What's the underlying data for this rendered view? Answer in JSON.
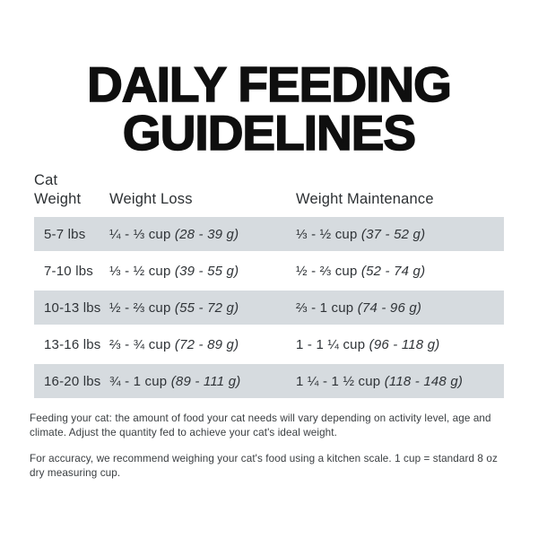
{
  "title": {
    "line1": "DAILY FEEDING",
    "line2": "GUIDELINES"
  },
  "table": {
    "headers": {
      "col1_line1": "Cat",
      "col1_line2": "Weight",
      "col2": "Weight Loss",
      "col3": "Weight Maintenance"
    },
    "rows": [
      {
        "weight": "5-7 lbs",
        "loss_cups": "¼ - ⅓ cup",
        "loss_grams": "(28 - 39 g)",
        "maint_cups": "⅓ - ½ cup",
        "maint_grams": "(37 - 52 g)"
      },
      {
        "weight": "7-10 lbs",
        "loss_cups": "⅓ - ½ cup",
        "loss_grams": "(39 - 55 g)",
        "maint_cups": "½ - ⅔ cup",
        "maint_grams": "(52 - 74 g)"
      },
      {
        "weight": "10-13 lbs",
        "loss_cups": "½ - ⅔ cup",
        "loss_grams": "(55 - 72 g)",
        "maint_cups": "⅔ - 1 cup",
        "maint_grams": "(74 - 96 g)"
      },
      {
        "weight": "13-16 lbs",
        "loss_cups": "⅔ - ¾ cup",
        "loss_grams": "(72 - 89 g)",
        "maint_cups": "1 - 1 ¼ cup",
        "maint_grams": "(96 - 118 g)"
      },
      {
        "weight": "16-20 lbs",
        "loss_cups": "¾ - 1 cup",
        "loss_grams": "(89 - 111 g)",
        "maint_cups": "1 ¼ - 1 ½ cup",
        "maint_grams": "(118 - 148 g)"
      }
    ],
    "row_shade_color": "#d6dbdf"
  },
  "footer": {
    "note1": "Feeding your cat: the amount of food your cat needs will vary depending on activity level, age and climate. Adjust the quantity fed to achieve your cat's ideal weight.",
    "note2": "For accuracy, we recommend weighing your cat's food using a kitchen scale. 1 cup = standard 8 oz dry measuring cup."
  }
}
